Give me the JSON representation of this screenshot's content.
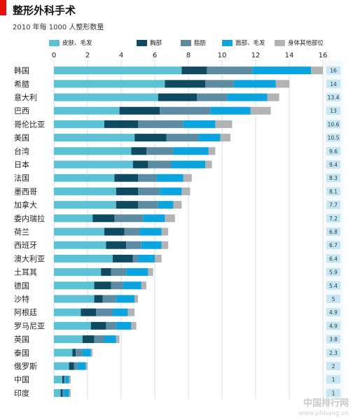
{
  "chart_data": {
    "type": "bar",
    "orientation": "horizontal",
    "stacked": true,
    "title": "整形外科手术",
    "subtitle": "2010 年每 1000 人整形数量",
    "xlim": [
      0,
      16
    ],
    "x_ticks": [
      "0",
      "2",
      "4",
      "6",
      "8",
      "10",
      "12",
      "14",
      "16"
    ],
    "grid": true,
    "legend_position": "top",
    "categories": [
      "韩国",
      "希腊",
      "意大利",
      "巴西",
      "哥伦比亚",
      "美国",
      "台湾",
      "日本",
      "法国",
      "墨西哥",
      "加拿大",
      "委内瑞拉",
      "荷兰",
      "西班牙",
      "澳大利亚",
      "土耳其",
      "德国",
      "沙特",
      "阿根廷",
      "罗马尼亚",
      "英国",
      "泰国",
      "俄罗斯",
      "中国",
      "印度"
    ],
    "totals": [
      "16",
      "14",
      "13.4",
      "13",
      "10.6",
      "10.5",
      "9.6",
      "9.4",
      "8.3",
      "8.1",
      "7.7",
      "7.2",
      "6.8",
      "6.7",
      "6.4",
      "5.9",
      "5.4",
      "5",
      "4.9",
      "4.9",
      "3.8",
      "2.3",
      "2",
      "1",
      "1"
    ],
    "series": [
      {
        "name": "皮肤、毛发",
        "color": "#5bc2d6",
        "values": [
          7.6,
          6.6,
          6.2,
          3.9,
          3.0,
          4.8,
          4.6,
          4.7,
          3.6,
          3.7,
          3.7,
          2.3,
          3.0,
          3.1,
          3.5,
          2.8,
          2.4,
          2.4,
          1.6,
          2.2,
          1.7,
          1.1,
          0.9,
          0.5,
          0.4
        ]
      },
      {
        "name": "胸部",
        "color": "#0e4a60",
        "values": [
          1.5,
          2.4,
          2.3,
          2.4,
          2.0,
          1.9,
          0.9,
          0.9,
          1.4,
          1.3,
          1.3,
          1.3,
          1.2,
          1.2,
          1.2,
          0.6,
          1.0,
          0.5,
          0.9,
          0.9,
          0.7,
          0.2,
          0.3,
          0.1,
          0.1
        ]
      },
      {
        "name": "脂肪",
        "color": "#5d8ba2",
        "values": [
          2.7,
          1.7,
          1.8,
          3.0,
          2.7,
          1.9,
          1.6,
          1.4,
          1.1,
          1.3,
          1.2,
          1.7,
          0.9,
          0.9,
          0.3,
          0.9,
          0.7,
          0.8,
          1.0,
          0.6,
          0.6,
          0.4,
          0.2,
          0.1,
          0.1
        ]
      },
      {
        "name": "面部、毛发",
        "color": "#0aa5e0",
        "values": [
          3.5,
          2.5,
          2.4,
          2.4,
          1.9,
          1.3,
          2.1,
          2.0,
          1.6,
          1.3,
          0.9,
          1.3,
          1.3,
          1.2,
          1.0,
          1.3,
          1.1,
          1.1,
          0.9,
          0.9,
          0.7,
          0.5,
          0.5,
          0.2,
          0.3
        ]
      },
      {
        "name": "身体其他部位",
        "color": "#b2b3b5",
        "values": [
          0.7,
          0.8,
          0.7,
          1.2,
          1.0,
          0.6,
          0.4,
          0.4,
          0.5,
          0.5,
          0.5,
          0.6,
          0.4,
          0.4,
          0.4,
          0.3,
          0.3,
          0.2,
          0.4,
          0.3,
          0.2,
          0.1,
          0.1,
          0.1,
          0.1
        ]
      }
    ]
  },
  "watermark": {
    "text": "中国排行网",
    "url": "www.phbang.cn"
  }
}
